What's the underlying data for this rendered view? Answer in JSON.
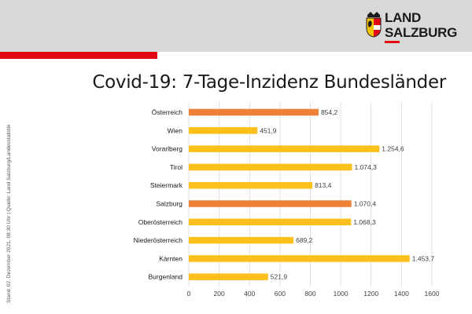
{
  "header": {
    "logo_line1": "LAND",
    "logo_line2": "SALZBURG"
  },
  "source_note": "Stand: 02. Dezember 2021, 08:30 Uhr | Quelle: Land Salzburg/Landesstatistik",
  "colors": {
    "header_bg": "#d9d9d9",
    "accent_red": "#e30613",
    "bar_default": "#fbc01b",
    "bar_highlight": "#ee8138",
    "grid": "#d9d9d9"
  },
  "chart_data": {
    "type": "bar",
    "orientation": "horizontal",
    "title": "Covid-19: 7-Tage-Inzidenz Bundesländer",
    "xlabel": "",
    "ylabel": "",
    "xlim": [
      0,
      1600
    ],
    "grid": true,
    "ticks": [
      0,
      200,
      400,
      600,
      800,
      1000,
      1200,
      1400,
      1600
    ],
    "tick_labels": [
      "0",
      "200",
      "400",
      "600",
      "800",
      "1000",
      "1200",
      "1400",
      "1600"
    ],
    "categories": [
      "Österreich",
      "Wien",
      "Vorarlberg",
      "Tirol",
      "Steiermark",
      "Salzburg",
      "Oberösterreich",
      "Niederösterreich",
      "Kärnten",
      "Burgenland"
    ],
    "values": [
      854.2,
      451.9,
      1254.6,
      1074.3,
      813.4,
      1070.4,
      1068.3,
      689.2,
      1453.7,
      521.9
    ],
    "value_labels": [
      "854,2",
      "451,9",
      "1.254,6",
      "1.074,3",
      "813,4",
      "1.070,4",
      "1.068,3",
      "689,2",
      "1.453,7",
      "521,9"
    ],
    "highlighted": [
      "Österreich",
      "Salzburg"
    ]
  }
}
